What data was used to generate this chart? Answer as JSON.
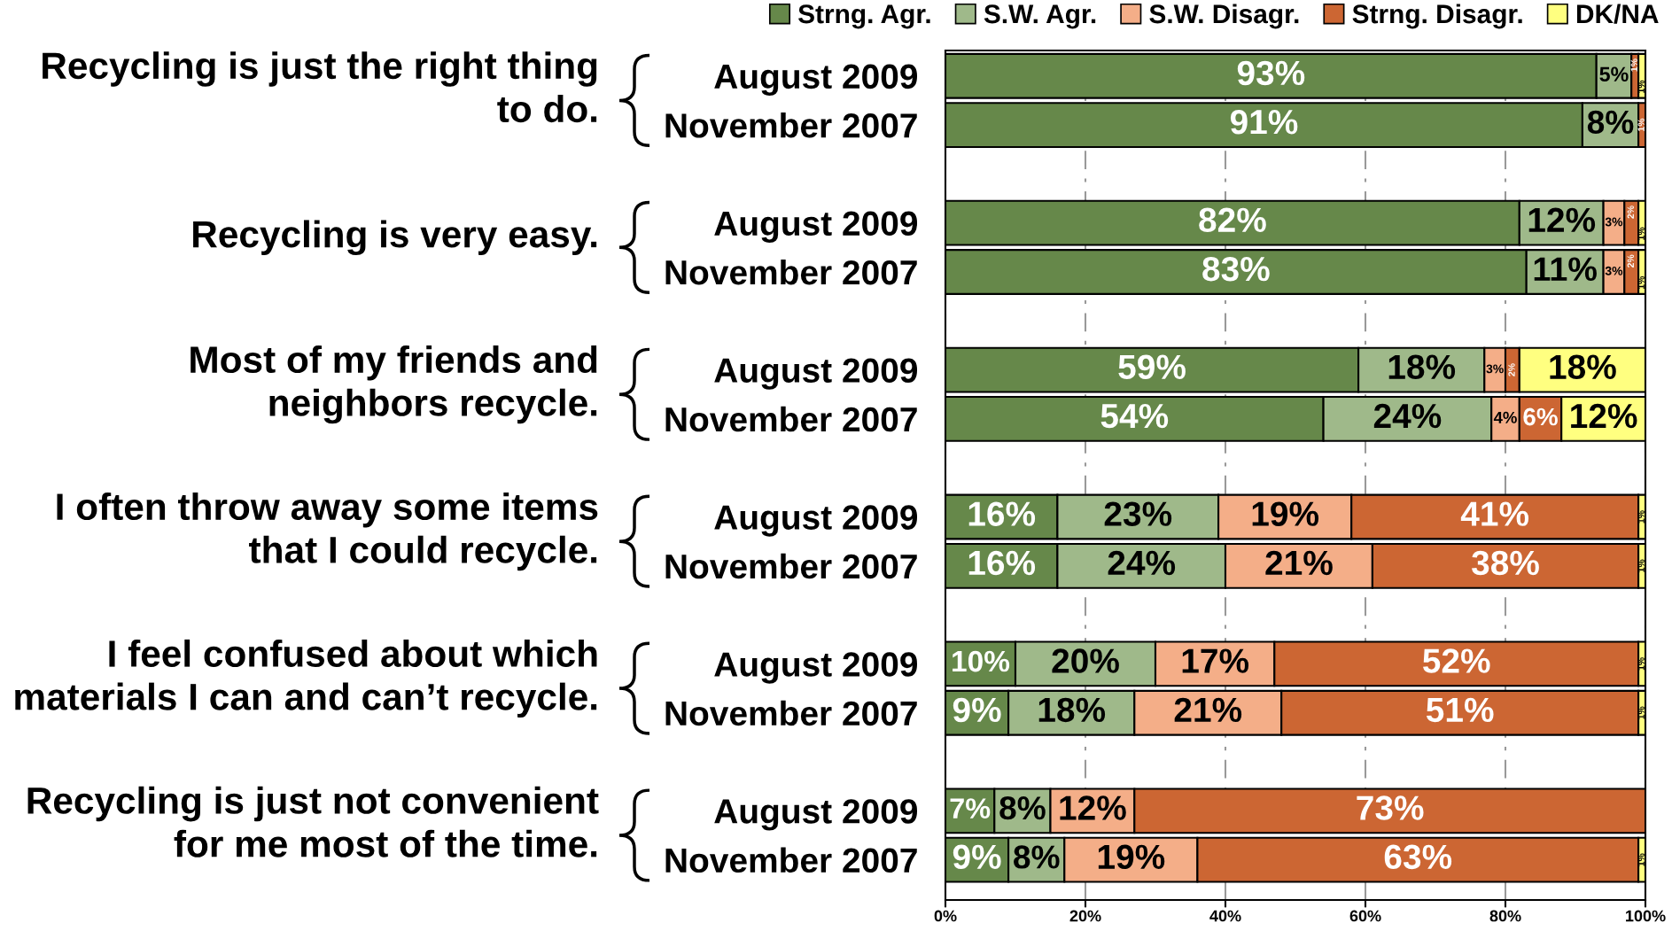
{
  "chart_data": {
    "type": "bar",
    "orientation": "horizontal",
    "stacked": true,
    "categories": [
      "August 2009",
      "November 2007",
      "August 2009",
      "November 2007",
      "August 2009",
      "November 2007",
      "August 2009",
      "November 2007",
      "August 2009",
      "November 2007",
      "August 2009",
      "November 2007"
    ],
    "annotations": [
      "Recycling is just the right thing\nto do.",
      "Recycling is very easy.",
      "Most of my friends and\nneighbors recycle.",
      "I often throw away some items\nthat I could recycle.",
      "I feel confused about which\nmaterials I can and can’t recycle.",
      "Recycling is just not convenient\nfor me most of the time."
    ],
    "series": [
      {
        "name": "Strng. Agr.",
        "color": "#66884a",
        "values": [
          93,
          91,
          82,
          83,
          59,
          54,
          16,
          16,
          10,
          9,
          7,
          9
        ],
        "value_labels": [
          "93%",
          "91%",
          "82%",
          "83%",
          "59%",
          "54%",
          "16%",
          "16%",
          "10%",
          "9%",
          "7%",
          "9%"
        ]
      },
      {
        "name": "S.W. Agr.",
        "color": "#9fb98a",
        "values": [
          5,
          8,
          12,
          11,
          18,
          24,
          23,
          24,
          20,
          18,
          8,
          8
        ],
        "value_labels": [
          "5%",
          "8%",
          "12%",
          "11%",
          "18%",
          "24%",
          "23%",
          "24%",
          "20%",
          "18%",
          "8%",
          "8%"
        ]
      },
      {
        "name": "S.W. Disagr.",
        "color": "#f4ae88",
        "values": [
          null,
          null,
          3,
          3,
          3,
          4,
          19,
          21,
          17,
          21,
          12,
          19
        ],
        "value_labels": [
          null,
          null,
          "3%",
          "3%",
          "3%",
          "4%",
          "19%",
          "21%",
          "17%",
          "21%",
          "12%",
          "19%"
        ]
      },
      {
        "name": "Strng. Disagr.",
        "color": "#cc6633",
        "values": [
          1,
          1,
          2,
          2,
          2,
          6,
          41,
          38,
          52,
          51,
          73,
          63
        ],
        "value_labels": [
          "1%",
          "1%",
          "2%",
          "2%",
          "2%",
          "6%",
          "41%",
          "38%",
          "52%",
          "51%",
          "73%",
          "63%"
        ]
      },
      {
        "name": "DK/NA",
        "color": "#ffff80",
        "values": [
          1,
          null,
          1,
          1,
          18,
          12,
          1,
          1,
          1,
          1,
          null,
          1
        ],
        "value_labels": [
          "1%",
          null,
          "1%",
          "1%",
          "18%",
          "12%",
          "1%",
          "1%",
          "1%",
          "1%",
          null,
          "1%"
        ]
      }
    ],
    "xlim": [
      0,
      100
    ],
    "xticks": [
      {
        "value": 0,
        "label": "0%"
      },
      {
        "value": 20,
        "label": "20%"
      },
      {
        "value": 40,
        "label": "40%"
      },
      {
        "value": 60,
        "label": "60%"
      },
      {
        "value": 80,
        "label": "80%"
      },
      {
        "value": 100,
        "label": "100%"
      }
    ],
    "grid": "x",
    "legend": "top"
  }
}
